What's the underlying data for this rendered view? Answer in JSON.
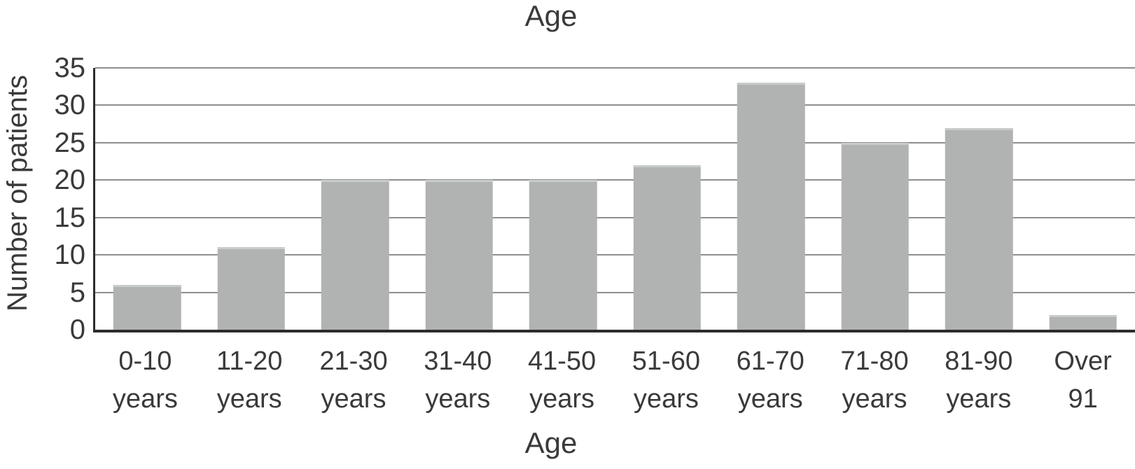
{
  "chart_data": {
    "type": "bar",
    "title": "Age",
    "xlabel": "Age",
    "ylabel": "Number of patients",
    "categories": [
      "0-10 years",
      "11-20 years",
      "21-30 years",
      "31-40 years",
      "41-50 years",
      "51-60 years",
      "61-70 years",
      "71-80 years",
      "81-90 years",
      "Over 91"
    ],
    "values": [
      6,
      11,
      20,
      20,
      20,
      22,
      33,
      25,
      27,
      2
    ],
    "ylim": [
      0,
      35
    ],
    "yticks": [
      0,
      5,
      10,
      15,
      20,
      25,
      30,
      35
    ],
    "grid": "horizontal",
    "legend": "none",
    "bar_color": "#b1b3b3",
    "bar_top_edge_color": "#c9cccc",
    "gridline_color": "#8f8f8f",
    "axis_color": "#2d2d2d",
    "text_color": "#3a3a3a"
  }
}
